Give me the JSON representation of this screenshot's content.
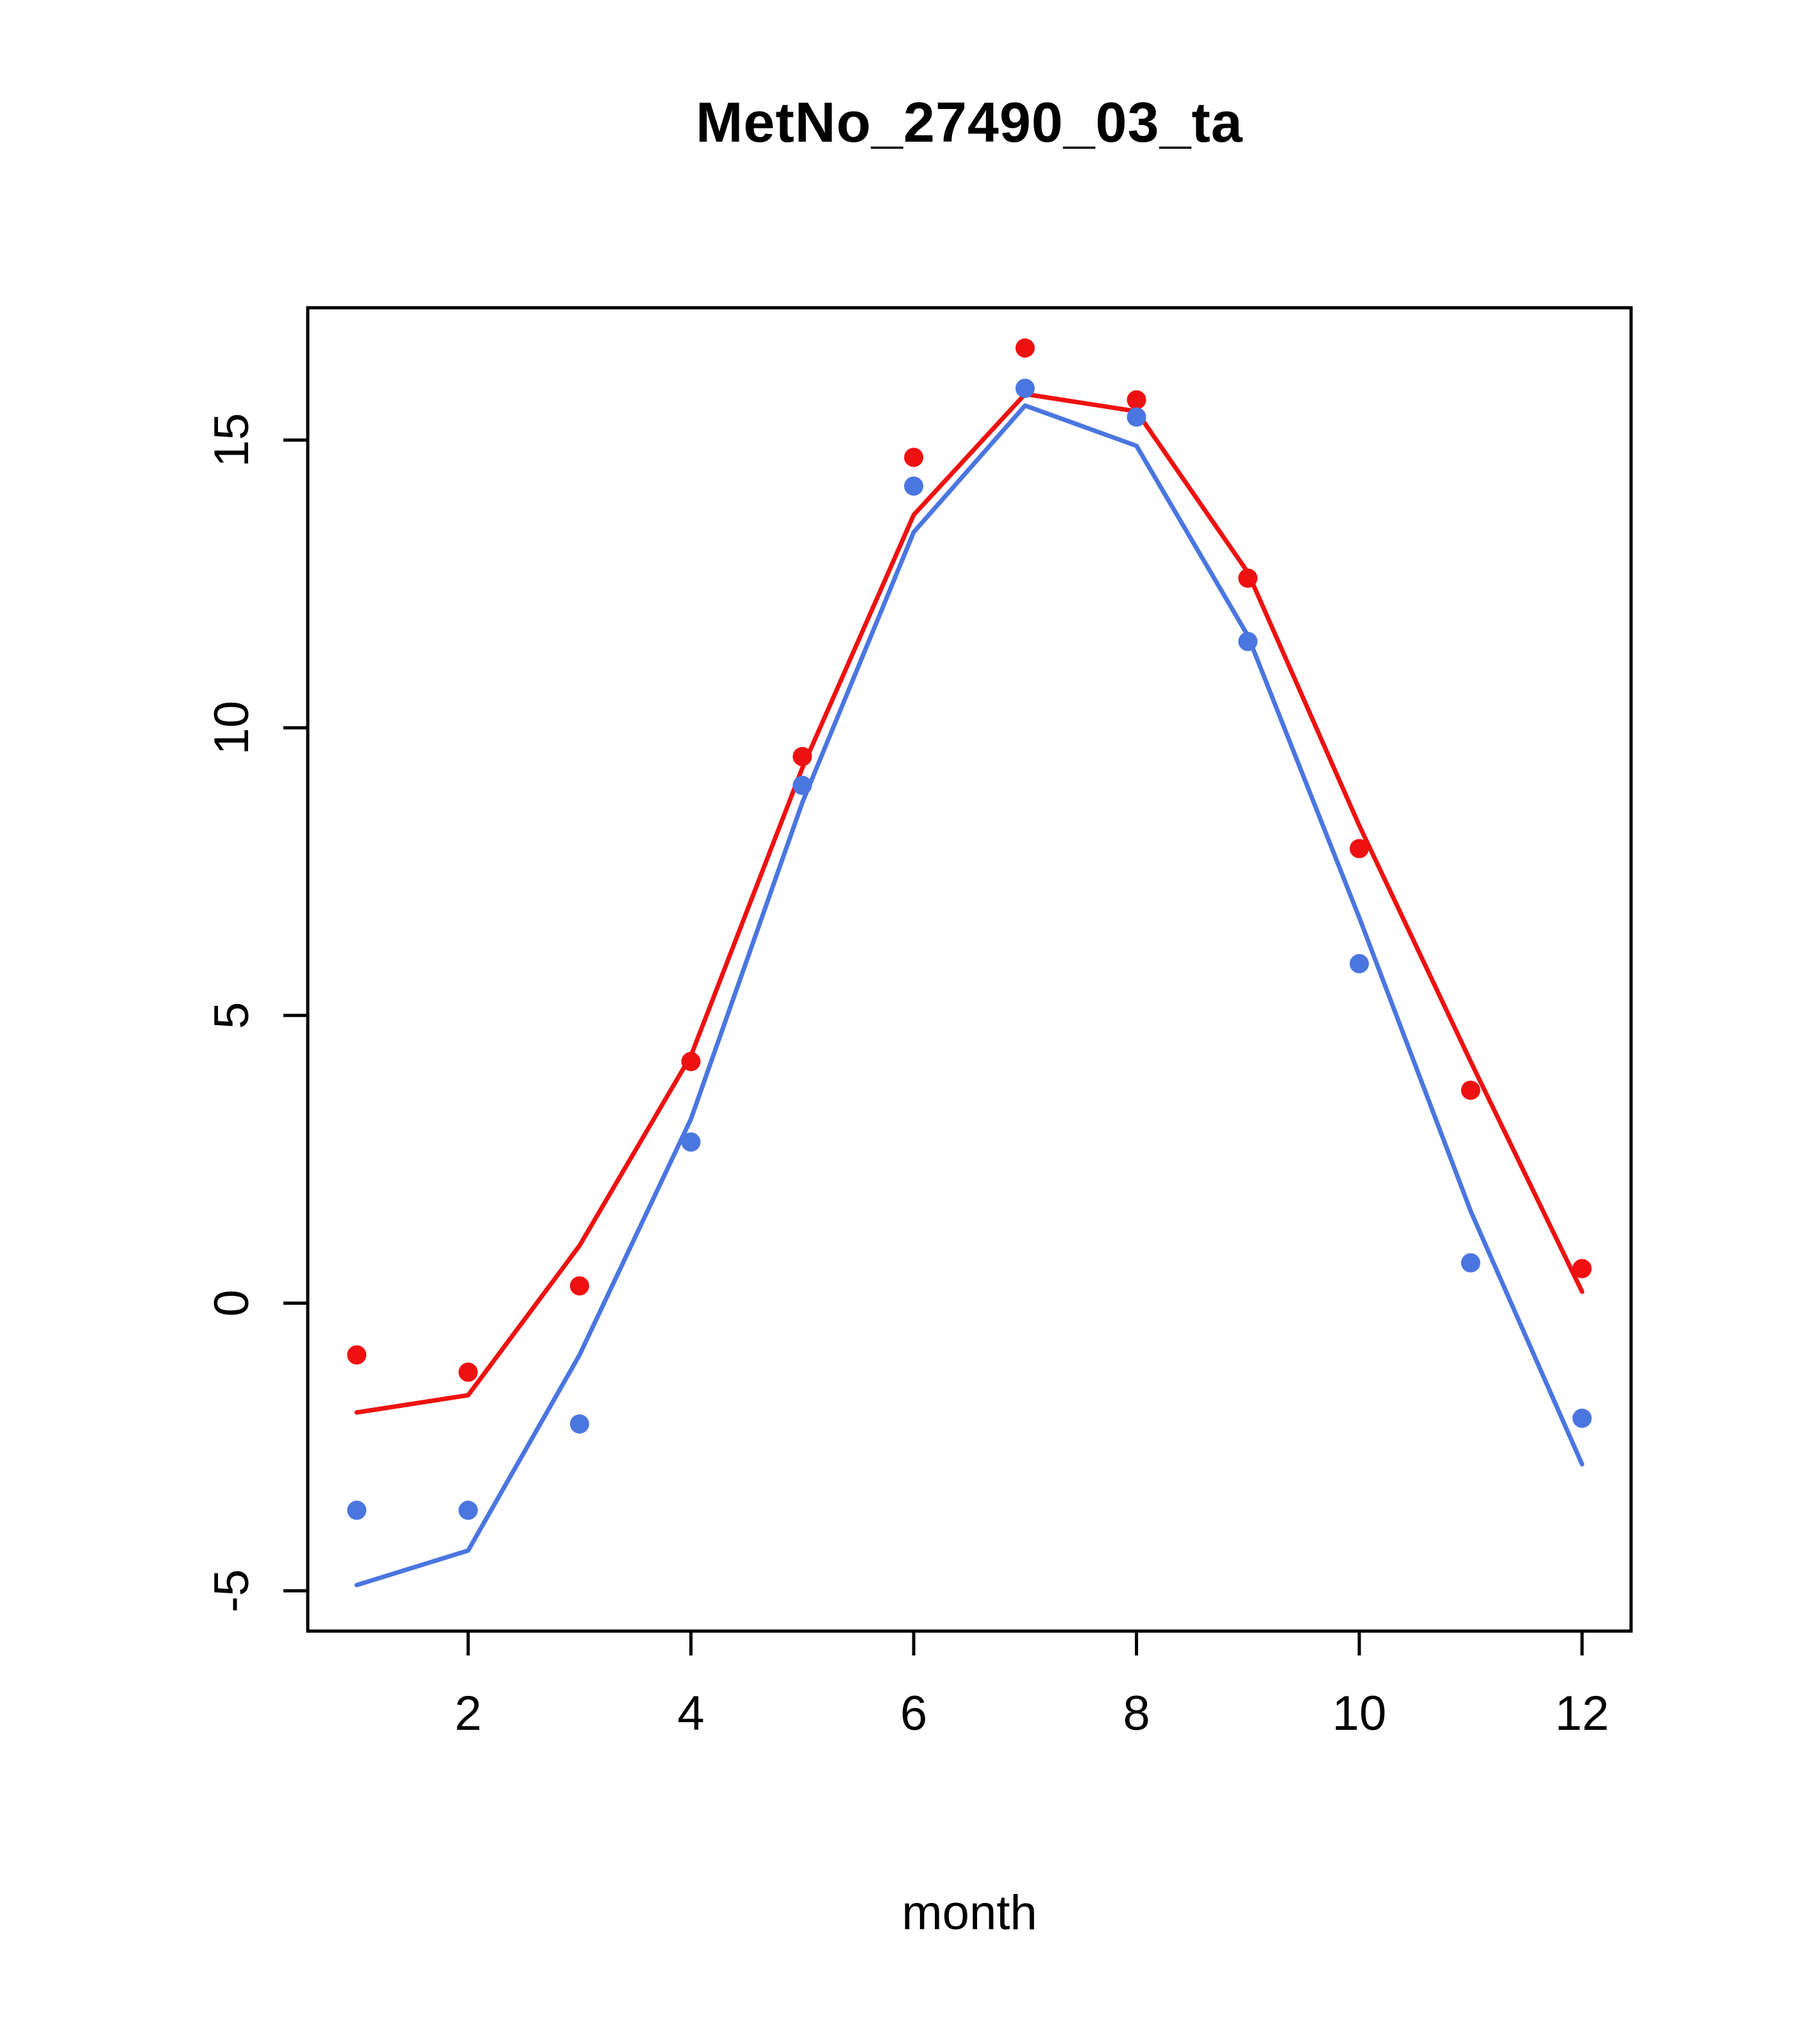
{
  "title": "MetNo_27490_03_ta",
  "colors": {
    "series_red": "#EE1111",
    "series_blue": "#4A76E0",
    "axis": "#000000",
    "background": "#FFFFFF"
  },
  "chart_data": {
    "type": "line",
    "title": "MetNo_27490_03_ta",
    "xlabel": "month",
    "ylabel": "",
    "x": [
      1,
      2,
      3,
      4,
      5,
      6,
      7,
      8,
      9,
      10,
      11,
      12
    ],
    "xticks": [
      2,
      4,
      6,
      8,
      10,
      12
    ],
    "yticks": [
      -5,
      0,
      5,
      10,
      15
    ],
    "xlim": [
      0.56,
      12.44
    ],
    "ylim": [
      -5.7,
      17.3
    ],
    "grid": false,
    "legend": "none",
    "series": [
      {
        "name": "red-line",
        "style": "line",
        "color": "#EE1111",
        "values": [
          -1.9,
          -1.6,
          1.0,
          4.3,
          9.3,
          13.7,
          15.8,
          15.5,
          12.7,
          8.3,
          4.2,
          0.2
        ]
      },
      {
        "name": "red-points",
        "style": "scatter",
        "color": "#EE1111",
        "values": [
          -0.9,
          -1.2,
          0.3,
          4.2,
          9.5,
          14.7,
          16.6,
          15.7,
          12.6,
          7.9,
          3.7,
          0.6
        ]
      },
      {
        "name": "blue-line",
        "style": "line",
        "color": "#4A76E0",
        "values": [
          -4.9,
          -4.3,
          -0.9,
          3.2,
          8.7,
          13.4,
          15.6,
          14.9,
          11.6,
          6.7,
          1.6,
          -2.8
        ]
      },
      {
        "name": "blue-points",
        "style": "scatter",
        "color": "#4A76E0",
        "values": [
          -3.6,
          -3.6,
          -2.1,
          2.8,
          9.0,
          14.2,
          15.9,
          15.4,
          11.5,
          5.9,
          0.7,
          -2.0
        ]
      }
    ]
  }
}
